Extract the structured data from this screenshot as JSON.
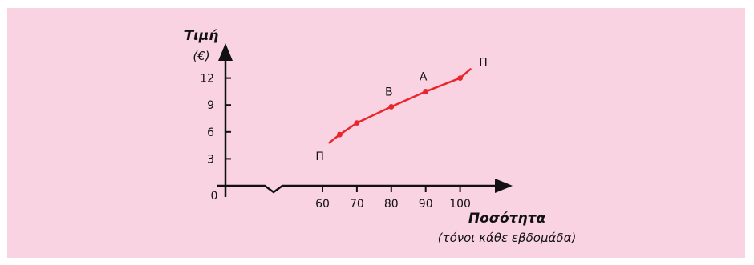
{
  "colors": {
    "background": "#f9d3e2",
    "axis": "#111111",
    "curve": "#e8262c"
  },
  "chart_data": {
    "type": "line",
    "xlabel": "Ποσότητα",
    "xlabel_sub": "(τόνοι κάθε εβδομάδα)",
    "ylabel": "Τιμή",
    "ylabel_sub": "(€)",
    "origin_label": "0",
    "x_ticks": [
      60,
      70,
      80,
      90,
      100
    ],
    "y_ticks": [
      3,
      6,
      9,
      12
    ],
    "xlim": [
      55,
      115
    ],
    "ylim": [
      0,
      16
    ],
    "axis_break": true,
    "series": [
      {
        "color": "#e8262c",
        "x": [
          62,
          65,
          70,
          80,
          90,
          100,
          103
        ],
        "y": [
          4.8,
          5.7,
          7.0,
          8.8,
          10.5,
          12.0,
          13.0
        ]
      }
    ],
    "markers": [
      {
        "x": 65,
        "y": 5.7
      },
      {
        "x": 70,
        "y": 7.0
      },
      {
        "x": 80,
        "y": 8.8
      },
      {
        "x": 90,
        "y": 10.5
      },
      {
        "x": 100,
        "y": 12.0
      }
    ],
    "annotations": [
      {
        "text": "Π",
        "x": 62,
        "y": 4.8,
        "pos": "below-left"
      },
      {
        "text": "Β",
        "x": 80,
        "y": 8.8,
        "pos": "above"
      },
      {
        "text": "Α",
        "x": 90,
        "y": 10.5,
        "pos": "above"
      },
      {
        "text": "Π",
        "x": 103,
        "y": 13.0,
        "pos": "upper-right"
      }
    ]
  }
}
